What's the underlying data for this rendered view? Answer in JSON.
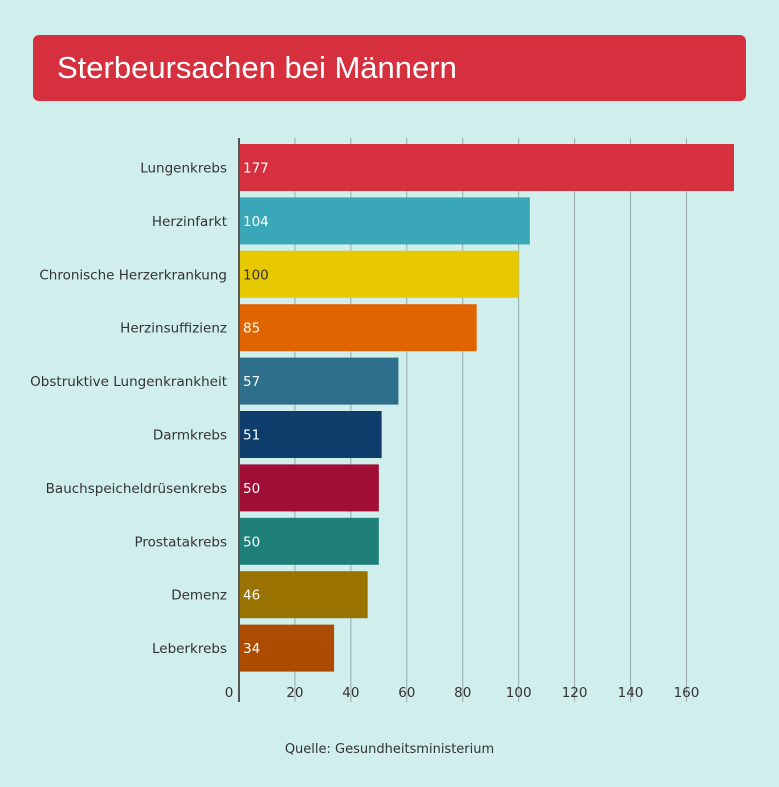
{
  "title": "Sterbeursachen bei Männern",
  "source": "Quelle: Gesundheitsministerium",
  "chart_data": {
    "type": "bar",
    "orientation": "horizontal",
    "title": "Sterbeursachen bei Männern",
    "xlim": [
      0,
      177
    ],
    "xticks": [
      0,
      20,
      40,
      60,
      80,
      100,
      120,
      140,
      160
    ],
    "grid": true,
    "categories": [
      "Lungenkrebs",
      "Herzinfarkt",
      "Chronische Herzerkrankung",
      "Herzinsuffizienz",
      "Obstruktive Lungenkrankheit",
      "Darmkrebs",
      "Bauchspeicheldrüsenkrebs",
      "Prostatakrebs",
      "Demenz",
      "Leberkrebs"
    ],
    "values": [
      177,
      104,
      100,
      85,
      57,
      51,
      50,
      50,
      46,
      34
    ],
    "colors": [
      "#d62f3e",
      "#3aa7b8",
      "#e8c900",
      "#e06400",
      "#2d6e8a",
      "#0e3c6b",
      "#a00d35",
      "#1f7f79",
      "#9a7200",
      "#ad4c00"
    ],
    "value_label_colors": [
      "#ffffff",
      "#ffffff",
      "#333333",
      "#ffffff",
      "#ffffff",
      "#ffffff",
      "#ffffff",
      "#ffffff",
      "#ffffff",
      "#ffffff"
    ]
  }
}
